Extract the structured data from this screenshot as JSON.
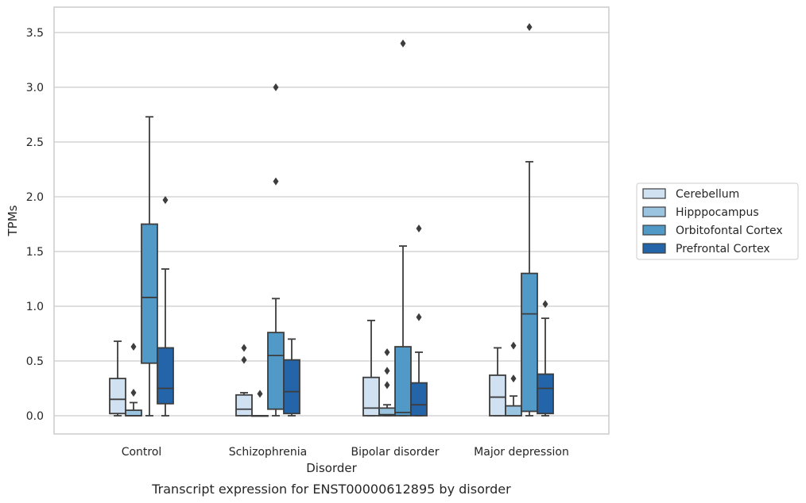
{
  "chart_data": {
    "type": "box",
    "caption": "Transcript expression for ENST00000612895 by disorder",
    "xlabel": "Disorder",
    "ylabel": "TPMs",
    "ylim": [
      -0.17,
      3.72
    ],
    "yticks": [
      0.0,
      0.5,
      1.0,
      1.5,
      2.0,
      2.5,
      3.0,
      3.5
    ],
    "ytick_labels": [
      "0.0",
      "0.5",
      "1.0",
      "1.5",
      "2.0",
      "2.5",
      "3.0",
      "3.5"
    ],
    "grid": true,
    "legend_position": "right",
    "categories": [
      "Control",
      "Schizophrenia",
      "Bipolar disorder",
      "Major depression"
    ],
    "series": [
      {
        "name": "Cerebellum",
        "color": "#d0e1f2",
        "boxes": [
          {
            "whisker_low": 0.0,
            "q1": 0.02,
            "median": 0.15,
            "q3": 0.34,
            "whisker_high": 0.68,
            "outliers": []
          },
          {
            "whisker_low": 0.0,
            "q1": 0.0,
            "median": 0.06,
            "q3": 0.19,
            "whisker_high": 0.21,
            "outliers": [
              0.51,
              0.62
            ]
          },
          {
            "whisker_low": 0.0,
            "q1": 0.0,
            "median": 0.07,
            "q3": 0.35,
            "whisker_high": 0.87,
            "outliers": []
          },
          {
            "whisker_low": 0.0,
            "q1": 0.0,
            "median": 0.17,
            "q3": 0.37,
            "whisker_high": 0.62,
            "outliers": []
          }
        ]
      },
      {
        "name": "Hipppocampus",
        "color": "#9ac4df",
        "boxes": [
          {
            "whisker_low": 0.0,
            "q1": 0.0,
            "median": 0.0,
            "q3": 0.05,
            "whisker_high": 0.12,
            "outliers": [
              0.21,
              0.63
            ]
          },
          {
            "whisker_low": 0.0,
            "q1": 0.0,
            "median": 0.0,
            "q3": 0.0,
            "whisker_high": 0.0,
            "outliers": [
              0.2
            ]
          },
          {
            "whisker_low": 0.0,
            "q1": 0.0,
            "median": 0.01,
            "q3": 0.07,
            "whisker_high": 0.1,
            "outliers": [
              0.28,
              0.41,
              0.58
            ]
          },
          {
            "whisker_low": 0.0,
            "q1": 0.0,
            "median": 0.0,
            "q3": 0.09,
            "whisker_high": 0.18,
            "outliers": [
              0.34,
              0.64
            ]
          }
        ]
      },
      {
        "name": "Orbitofontal Cortex",
        "color": "#5199c7",
        "boxes": [
          {
            "whisker_low": 0.0,
            "q1": 0.48,
            "median": 1.08,
            "q3": 1.75,
            "whisker_high": 2.73,
            "outliers": []
          },
          {
            "whisker_low": 0.0,
            "q1": 0.06,
            "median": 0.55,
            "q3": 0.76,
            "whisker_high": 1.07,
            "outliers": [
              2.14,
              3.0
            ]
          },
          {
            "whisker_low": 0.0,
            "q1": 0.0,
            "median": 0.03,
            "q3": 0.63,
            "whisker_high": 1.55,
            "outliers": [
              3.4
            ]
          },
          {
            "whisker_low": 0.0,
            "q1": 0.04,
            "median": 0.93,
            "q3": 1.3,
            "whisker_high": 2.32,
            "outliers": [
              3.55
            ]
          }
        ]
      },
      {
        "name": "Prefrontal Cortex",
        "color": "#2464a8",
        "boxes": [
          {
            "whisker_low": 0.0,
            "q1": 0.11,
            "median": 0.25,
            "q3": 0.62,
            "whisker_high": 1.34,
            "outliers": [
              1.97
            ]
          },
          {
            "whisker_low": 0.0,
            "q1": 0.02,
            "median": 0.22,
            "q3": 0.51,
            "whisker_high": 0.7,
            "outliers": []
          },
          {
            "whisker_low": 0.0,
            "q1": 0.0,
            "median": 0.1,
            "q3": 0.3,
            "whisker_high": 0.58,
            "outliers": [
              0.9,
              1.71
            ]
          },
          {
            "whisker_low": 0.0,
            "q1": 0.02,
            "median": 0.25,
            "q3": 0.38,
            "whisker_high": 0.89,
            "outliers": [
              1.02
            ]
          }
        ]
      }
    ]
  }
}
